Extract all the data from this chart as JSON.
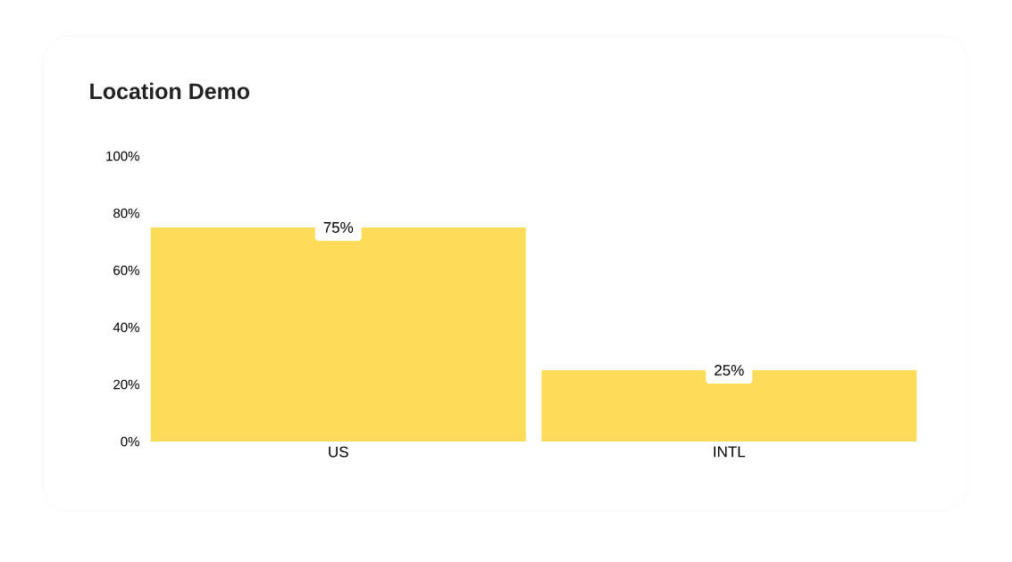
{
  "chart_data": {
    "type": "bar",
    "title": "Location Demo",
    "categories": [
      "US",
      "INTL"
    ],
    "values": [
      75,
      25
    ],
    "value_labels": [
      "75%",
      "25%"
    ],
    "color": "#fddc5a",
    "ylim": [
      0,
      100
    ],
    "yticks": [
      {
        "value": 0,
        "label": "0%"
      },
      {
        "value": 20,
        "label": "20%"
      },
      {
        "value": 40,
        "label": "40%"
      },
      {
        "value": 60,
        "label": "60%"
      },
      {
        "value": 80,
        "label": "80%"
      },
      {
        "value": 100,
        "label": "100%"
      }
    ]
  }
}
